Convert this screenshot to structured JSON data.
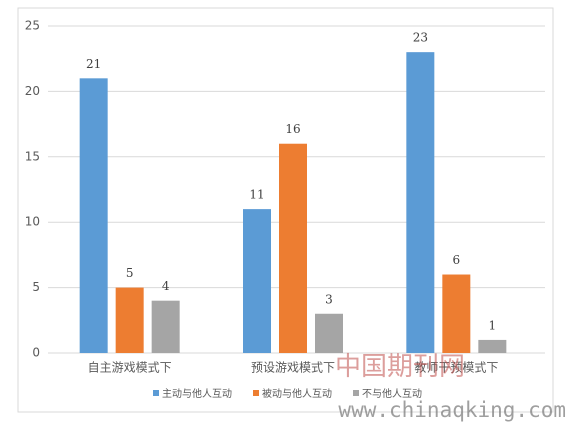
{
  "chart_data": {
    "type": "bar",
    "categories": [
      "自主游戏模式下",
      "预设游戏模式下",
      "教师干预模式下"
    ],
    "series": [
      {
        "name": "主动与他人互动",
        "color": "#5b9bd5",
        "values": [
          21,
          11,
          23
        ]
      },
      {
        "name": "被动与他人互动",
        "color": "#ed7d31",
        "values": [
          5,
          16,
          6
        ]
      },
      {
        "name": "不与他人互动",
        "color": "#a5a5a5",
        "values": [
          4,
          3,
          1
        ]
      }
    ],
    "ylim": [
      0,
      25
    ],
    "yticks": [
      0,
      5,
      10,
      15,
      20,
      25
    ],
    "grid": true,
    "legend": "bottom",
    "watermark": [
      "中国期刊网",
      "www.chinaqking.com"
    ]
  }
}
